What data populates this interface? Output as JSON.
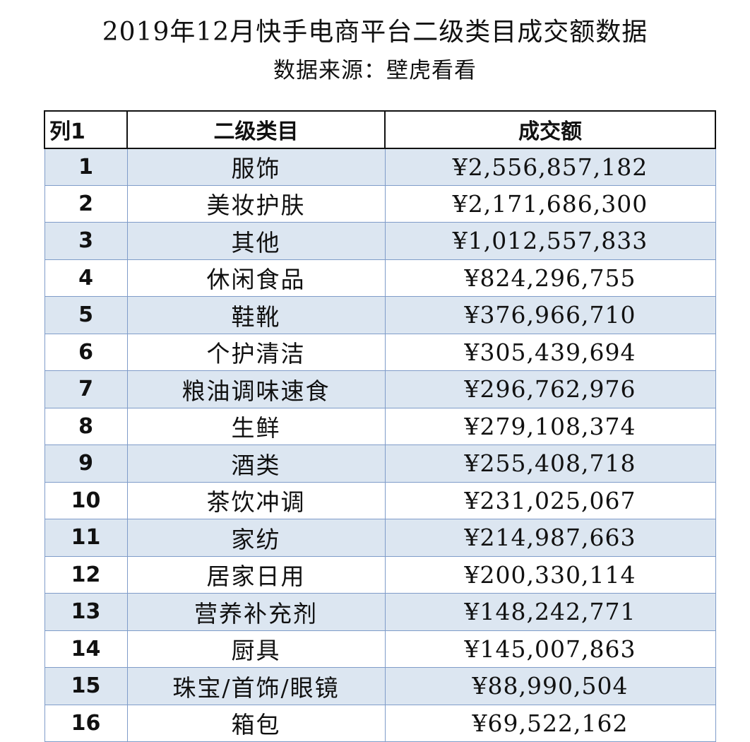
{
  "title": "2019年12月快手电商平台二级类目成交额数据",
  "subtitle": "数据来源：壁虎看看",
  "table": {
    "headers": [
      "列1",
      "二级类目",
      "成交额"
    ],
    "rows": [
      {
        "idx": "1",
        "category": "服饰",
        "amount": "¥2,556,857,182"
      },
      {
        "idx": "2",
        "category": "美妆护肤",
        "amount": "¥2,171,686,300"
      },
      {
        "idx": "3",
        "category": "其他",
        "amount": "¥1,012,557,833"
      },
      {
        "idx": "4",
        "category": "休闲食品",
        "amount": "¥824,296,755"
      },
      {
        "idx": "5",
        "category": "鞋靴",
        "amount": "¥376,966,710"
      },
      {
        "idx": "6",
        "category": "个护清洁",
        "amount": "¥305,439,694"
      },
      {
        "idx": "7",
        "category": "粮油调味速食",
        "amount": "¥296,762,976"
      },
      {
        "idx": "8",
        "category": "生鲜",
        "amount": "¥279,108,374"
      },
      {
        "idx": "9",
        "category": "酒类",
        "amount": "¥255,408,718"
      },
      {
        "idx": "10",
        "category": "茶饮冲调",
        "amount": "¥231,025,067"
      },
      {
        "idx": "11",
        "category": "家纺",
        "amount": "¥214,987,663"
      },
      {
        "idx": "12",
        "category": "居家日用",
        "amount": "¥200,330,114"
      },
      {
        "idx": "13",
        "category": "营养补充剂",
        "amount": "¥148,242,771"
      },
      {
        "idx": "14",
        "category": "厨具",
        "amount": "¥145,007,863"
      },
      {
        "idx": "15",
        "category": "珠宝/首饰/眼镜",
        "amount": "¥88,990,504"
      },
      {
        "idx": "16",
        "category": "箱包",
        "amount": "¥69,522,162"
      }
    ]
  },
  "colors": {
    "row_shade": "#dce6f1",
    "grid_line": "#7f9cc9",
    "header_border": "#111111"
  }
}
